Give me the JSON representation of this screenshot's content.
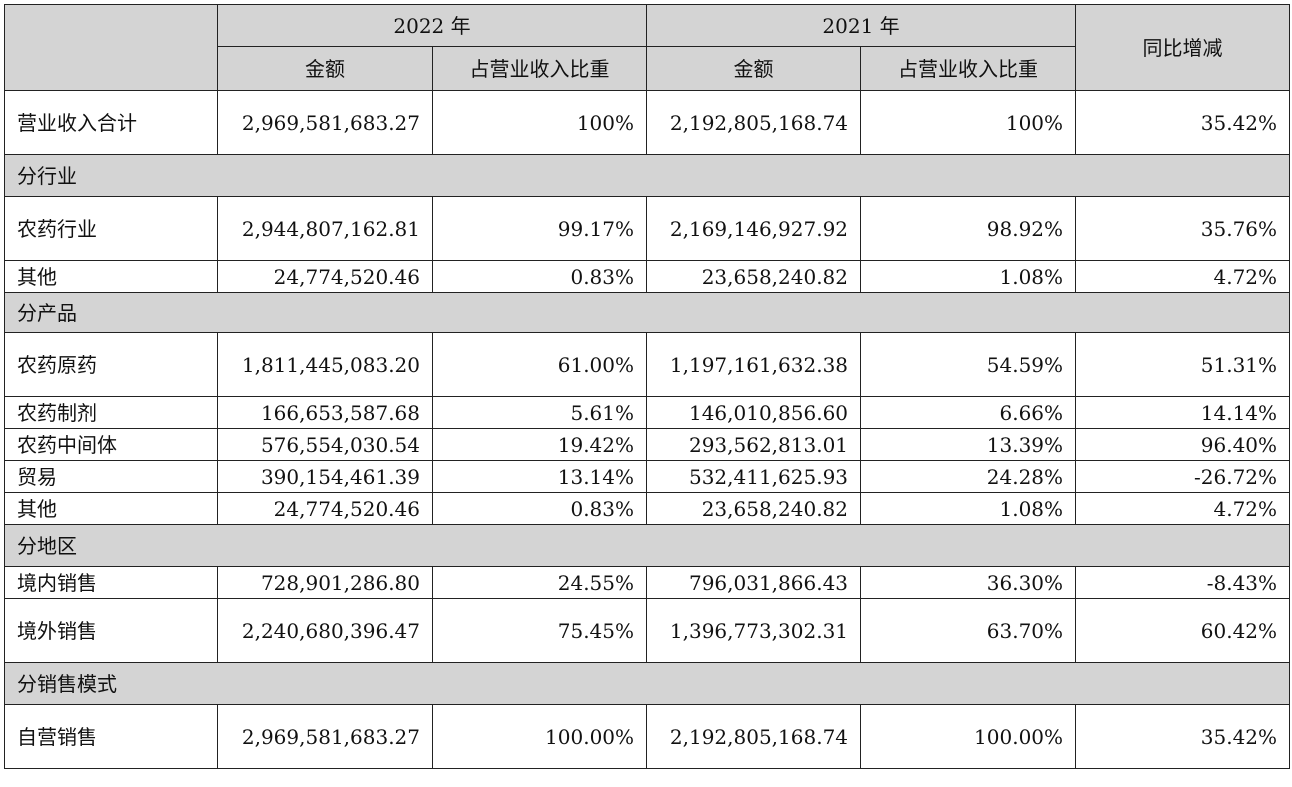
{
  "header": {
    "year_2022": "2022 年",
    "year_2021": "2021 年",
    "change": "同比增减",
    "amount": "金额",
    "share": "占营业收入比重"
  },
  "total": {
    "label": "营业收入合计",
    "amt2022": "2,969,581,683.27",
    "pct2022": "100%",
    "amt2021": "2,192,805,168.74",
    "pct2021": "100%",
    "change": "35.42%"
  },
  "sections": [
    {
      "title": "分行业",
      "rows": [
        {
          "label": "农药行业",
          "amt2022": "2,944,807,162.81",
          "pct2022": "99.17%",
          "amt2021": "2,169,146,927.92",
          "pct2021": "98.92%",
          "change": "35.76%"
        },
        {
          "label": "其他",
          "amt2022": "24,774,520.46",
          "pct2022": "0.83%",
          "amt2021": "23,658,240.82",
          "pct2021": "1.08%",
          "change": "4.72%"
        }
      ]
    },
    {
      "title": "分产品",
      "rows": [
        {
          "label": "农药原药",
          "amt2022": "1,811,445,083.20",
          "pct2022": "61.00%",
          "amt2021": "1,197,161,632.38",
          "pct2021": "54.59%",
          "change": "51.31%"
        },
        {
          "label": "农药制剂",
          "amt2022": "166,653,587.68",
          "pct2022": "5.61%",
          "amt2021": "146,010,856.60",
          "pct2021": "6.66%",
          "change": "14.14%"
        },
        {
          "label": "农药中间体",
          "amt2022": "576,554,030.54",
          "pct2022": "19.42%",
          "amt2021": "293,562,813.01",
          "pct2021": "13.39%",
          "change": "96.40%"
        },
        {
          "label": "贸易",
          "amt2022": "390,154,461.39",
          "pct2022": "13.14%",
          "amt2021": "532,411,625.93",
          "pct2021": "24.28%",
          "change": "-26.72%"
        },
        {
          "label": "其他",
          "amt2022": "24,774,520.46",
          "pct2022": "0.83%",
          "amt2021": "23,658,240.82",
          "pct2021": "1.08%",
          "change": "4.72%"
        }
      ]
    },
    {
      "title": "分地区",
      "rows": [
        {
          "label": "境内销售",
          "amt2022": "728,901,286.80",
          "pct2022": "24.55%",
          "amt2021": "796,031,866.43",
          "pct2021": "36.30%",
          "change": "-8.43%"
        },
        {
          "label": "境外销售",
          "amt2022": "2,240,680,396.47",
          "pct2022": "75.45%",
          "amt2021": "1,396,773,302.31",
          "pct2021": "63.70%",
          "change": "60.42%"
        }
      ]
    },
    {
      "title": "分销售模式",
      "rows": [
        {
          "label": "自营销售",
          "amt2022": "2,969,581,683.27",
          "pct2022": "100.00%",
          "amt2021": "2,192,805,168.74",
          "pct2021": "100.00%",
          "change": "35.42%"
        }
      ]
    }
  ]
}
